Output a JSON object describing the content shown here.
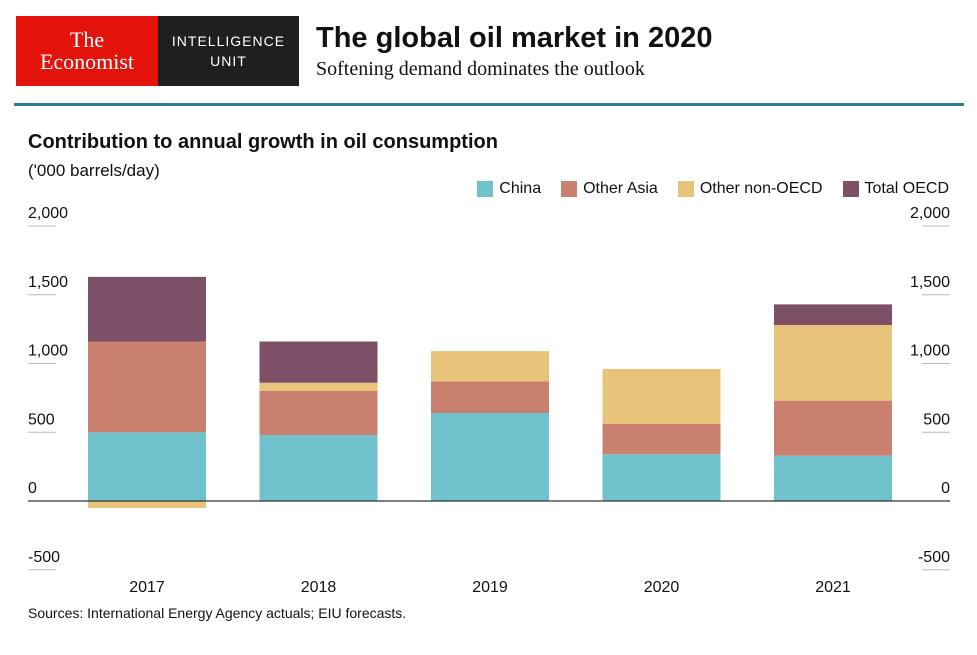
{
  "logo": {
    "line1": "The",
    "line2": "Economist",
    "unit_line1": "INTELLIGENCE",
    "unit_line2": "UNIT"
  },
  "header": {
    "title": "The global oil market in 2020",
    "subtitle": "Softening demand dominates the outlook"
  },
  "chart_data": {
    "type": "bar",
    "stacked": true,
    "title": "Contribution to annual growth in oil consumption",
    "ylabel": "('000 barrels/day)",
    "xlabel": "",
    "categories": [
      "2017",
      "2018",
      "2019",
      "2020",
      "2021"
    ],
    "ylim": [
      -500,
      2000
    ],
    "yticks": [
      "2,000",
      "1,500",
      "1,000",
      "500",
      "0",
      "-500"
    ],
    "ytick_values": [
      2000,
      1500,
      1000,
      500,
      0,
      -500
    ],
    "legend_position": "top-right",
    "grid": false,
    "series": [
      {
        "name": "China",
        "color": "#6fc1cc",
        "values": [
          500,
          480,
          640,
          340,
          330
        ]
      },
      {
        "name": "Other Asia",
        "color": "#c9806f",
        "values": [
          660,
          320,
          230,
          220,
          400
        ]
      },
      {
        "name": "Other non-OECD",
        "color": "#e8c47b",
        "values": [
          -50,
          60,
          220,
          400,
          550
        ]
      },
      {
        "name": "Total OECD",
        "color": "#7d5068",
        "values": [
          470,
          300,
          0,
          0,
          150
        ]
      }
    ]
  },
  "footer": {
    "source": "Sources: International Energy Agency actuals; EIU forecasts."
  }
}
